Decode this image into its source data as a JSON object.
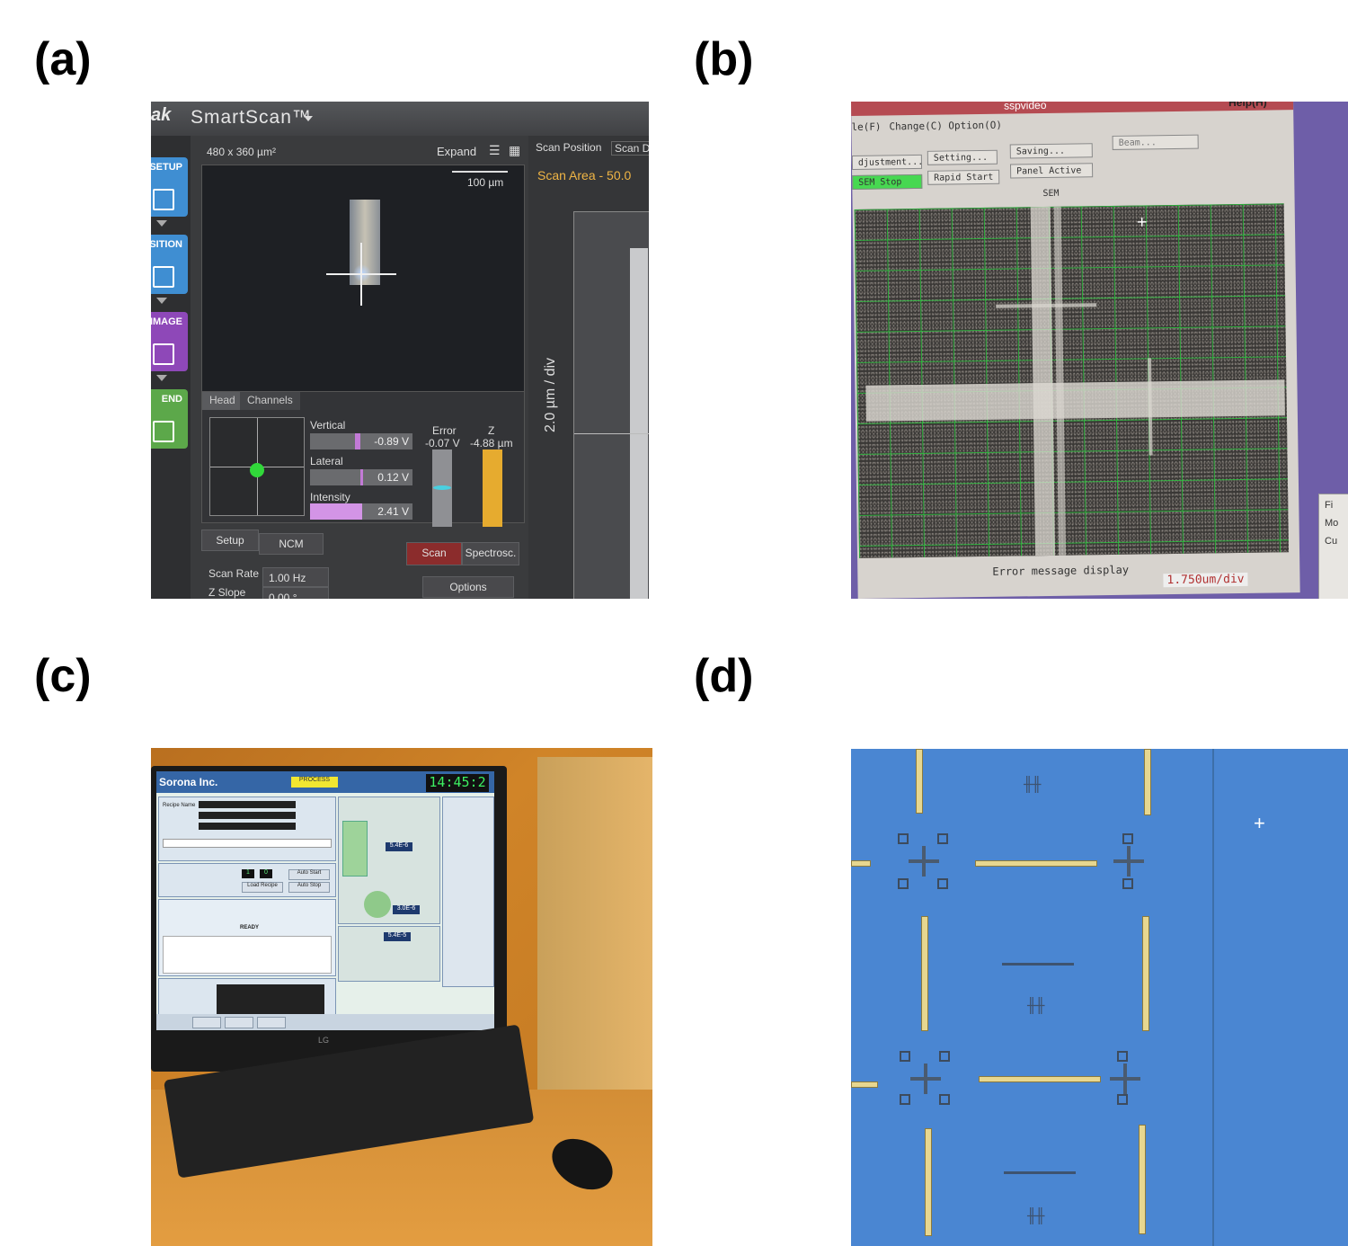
{
  "labels": {
    "a": "(a)",
    "b": "(b)",
    "c": "(c)",
    "d": "(d)"
  },
  "panel_a": {
    "app_name": "SmartScan™",
    "nav": [
      {
        "label": "SETUP",
        "color": "#3f8ed2"
      },
      {
        "label": "OSITION",
        "color": "#3f8ed2"
      },
      {
        "label": "IMAGE",
        "color": "#8e48b8"
      },
      {
        "label": "END",
        "color": "#5ca84a"
      }
    ],
    "image_size": "480 x 360 µm²",
    "expand": "Expand",
    "scale_bar": "100 µm",
    "right_tabs": {
      "scan_position": "Scan Position",
      "scan_d": "Scan D"
    },
    "scan_area": "Scan Area  -  50.0",
    "axis_label": "2.0 µm / div",
    "tabs": {
      "head": "Head",
      "channels": "Channels"
    },
    "vertical": {
      "label": "Vertical",
      "value": "-0.89 V"
    },
    "lateral": {
      "label": "Lateral",
      "value": "0.12 V"
    },
    "intensity": {
      "label": "Intensity",
      "value": "2.41 V"
    },
    "error": {
      "label": "Error",
      "value": "-0.07 V"
    },
    "z": {
      "label": "Z",
      "value": "-4.88 µm"
    },
    "buttons": {
      "setup": "Setup",
      "ncm": "NCM",
      "scan": "Scan",
      "spectrosc": "Spectrosc.",
      "options": "Options"
    },
    "scan_rate": {
      "label": "Scan Rate",
      "value": "1.00 Hz"
    },
    "z_slope": {
      "label": "Z Slope",
      "value": "0.00 °"
    }
  },
  "panel_b": {
    "title": "sspvideo",
    "help": "Help(H)",
    "menu": {
      "file": "le(F)",
      "change": "Change(C)",
      "option": "Option(O)"
    },
    "buttons": {
      "adjustment": "djustment...",
      "setting": "Setting...",
      "saving": "Saving...",
      "beam": "Beam...",
      "sem_stop": "SEM Stop",
      "rapid_start": "Rapid Start",
      "panel_active": "Panel Active"
    },
    "image_title": "SEM",
    "error_display": "Error message display",
    "scale": "1.750um/div",
    "side_menu": [
      "Fi",
      "Mo",
      "Cu"
    ]
  },
  "panel_c": {
    "company": "Sorona Inc.",
    "clock": "14:45:2",
    "status": "PROCESS",
    "recipe_label": "Recipe Name",
    "load_recipe": "Load Recipe",
    "auto_start": "Auto Start",
    "auto_stop": "Auto Stop",
    "ready": "READY",
    "gauge1": "5.4E-6",
    "gauge2": "3.0E-6",
    "gauge3": "5.4E-5",
    "monitor_brand": "LG"
  },
  "panel_d": {
    "marks": [
      "╫╫",
      "╫╫",
      "╫╫",
      "╫╫"
    ]
  }
}
